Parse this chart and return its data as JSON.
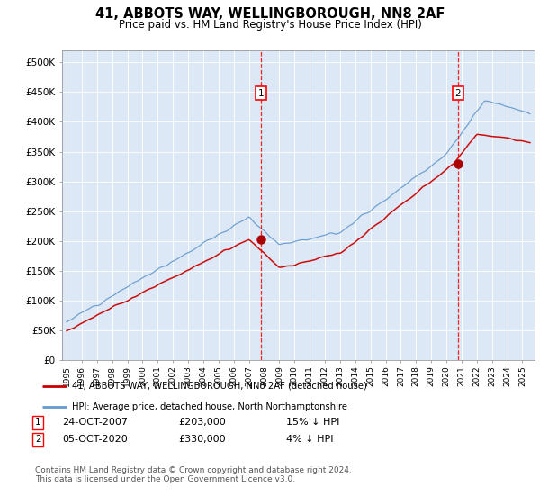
{
  "title": "41, ABBOTS WAY, WELLINGBOROUGH, NN8 2AF",
  "subtitle": "Price paid vs. HM Land Registry's House Price Index (HPI)",
  "ylabel_ticks": [
    "£0",
    "£50K",
    "£100K",
    "£150K",
    "£200K",
    "£250K",
    "£300K",
    "£350K",
    "£400K",
    "£450K",
    "£500K"
  ],
  "ytick_values": [
    0,
    50000,
    100000,
    150000,
    200000,
    250000,
    300000,
    350000,
    400000,
    450000,
    500000
  ],
  "ylim": [
    0,
    520000
  ],
  "xlim_start": 1994.7,
  "xlim_end": 2025.8,
  "plot_bg": "#dce8f5",
  "sale1_x": 2007.81,
  "sale1_y": 203000,
  "sale2_x": 2020.76,
  "sale2_y": 330000,
  "sale1_date": "24-OCT-2007",
  "sale1_price": "£203,000",
  "sale1_hpi": "15% ↓ HPI",
  "sale2_date": "05-OCT-2020",
  "sale2_price": "£330,000",
  "sale2_hpi": "4% ↓ HPI",
  "line_color_red": "#cc0000",
  "line_color_blue": "#6699cc",
  "legend_label_red": "41, ABBOTS WAY, WELLINGBOROUGH, NN8 2AF (detached house)",
  "legend_label_blue": "HPI: Average price, detached house, North Northamptonshire",
  "footer": "Contains HM Land Registry data © Crown copyright and database right 2024.\nThis data is licensed under the Open Government Licence v3.0.",
  "xtick_years": [
    1995,
    1996,
    1997,
    1998,
    1999,
    2000,
    2001,
    2002,
    2003,
    2004,
    2005,
    2006,
    2007,
    2008,
    2009,
    2010,
    2011,
    2012,
    2013,
    2014,
    2015,
    2016,
    2017,
    2018,
    2019,
    2020,
    2021,
    2022,
    2023,
    2024,
    2025
  ]
}
